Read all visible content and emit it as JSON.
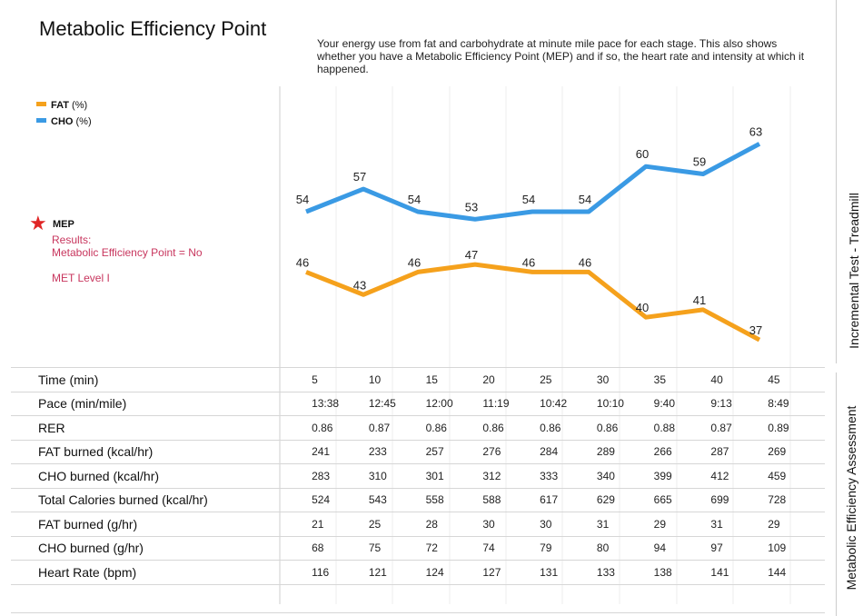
{
  "page": {
    "title": "Metabolic Efficiency Point",
    "subtitle": "Your energy use from fat and carbohydrate at minute mile pace for each stage. This also shows whether you have a Metabolic Efficiency Point (MEP) and if so, the heart rate and intensity at which it happened.",
    "side_titles": [
      "Incremental Test - Treadmill",
      "Metabolic Efficiency Assessment"
    ]
  },
  "legend": [
    {
      "name": "FAT",
      "unit": "(%)",
      "color": "#f5a11c"
    },
    {
      "name": "CHO",
      "unit": "(%)",
      "color": "#3a9ae4"
    }
  ],
  "mep": {
    "label": "MEP",
    "results_label": "Results:",
    "result_text": "Metabolic Efficiency Point = No",
    "met_level": "MET Level I",
    "star_color": "#e02525",
    "text_color": "#c8365e"
  },
  "chart_data": {
    "type": "line",
    "x": [
      5,
      10,
      15,
      20,
      25,
      30,
      35,
      40,
      45
    ],
    "series": [
      {
        "name": "FAT (%)",
        "color": "#f5a11c",
        "values": [
          46,
          43,
          46,
          47,
          46,
          46,
          40,
          41,
          37
        ]
      },
      {
        "name": "CHO (%)",
        "color": "#3a9ae4",
        "values": [
          54,
          57,
          54,
          53,
          54,
          54,
          60,
          59,
          63
        ]
      }
    ],
    "ylim": [
      0,
      100
    ],
    "data_labels": true,
    "grid": "vertical",
    "legend_position": "left"
  },
  "table": {
    "rows": [
      {
        "label": "Time (min)",
        "values": [
          "5",
          "10",
          "15",
          "20",
          "25",
          "30",
          "35",
          "40",
          "45"
        ]
      },
      {
        "label": "Pace (min/mile)",
        "values": [
          "13:38",
          "12:45",
          "12:00",
          "11:19",
          "10:42",
          "10:10",
          "9:40",
          "9:13",
          "8:49"
        ]
      },
      {
        "label": "RER",
        "values": [
          "0.86",
          "0.87",
          "0.86",
          "0.86",
          "0.86",
          "0.86",
          "0.88",
          "0.87",
          "0.89"
        ]
      },
      {
        "label": "FAT burned (kcal/hr)",
        "values": [
          "241",
          "233",
          "257",
          "276",
          "284",
          "289",
          "266",
          "287",
          "269"
        ]
      },
      {
        "label": "CHO burned (kcal/hr)",
        "values": [
          "283",
          "310",
          "301",
          "312",
          "333",
          "340",
          "399",
          "412",
          "459"
        ]
      },
      {
        "label": "Total Calories burned (kcal/hr)",
        "values": [
          "524",
          "543",
          "558",
          "588",
          "617",
          "629",
          "665",
          "699",
          "728"
        ]
      },
      {
        "label": "FAT burned (g/hr)",
        "values": [
          "21",
          "25",
          "28",
          "30",
          "30",
          "31",
          "29",
          "31",
          "29"
        ]
      },
      {
        "label": "CHO burned (g/hr)",
        "values": [
          "68",
          "75",
          "72",
          "74",
          "79",
          "80",
          "94",
          "97",
          "109"
        ]
      },
      {
        "label": "Heart Rate (bpm)",
        "values": [
          "116",
          "121",
          "124",
          "127",
          "131",
          "133",
          "138",
          "141",
          "144"
        ]
      },
      {
        "label": "",
        "values": [
          "",
          "",
          "",
          "",
          "",
          "",
          "",
          "",
          ""
        ]
      }
    ]
  }
}
